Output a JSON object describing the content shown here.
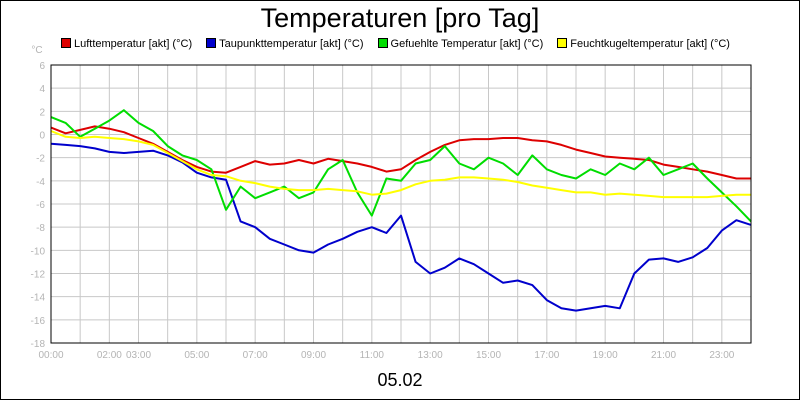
{
  "title": "Temperaturen [pro Tag]",
  "date_label": "05.02",
  "chart_data": {
    "type": "line",
    "title": "Temperaturen [pro Tag]",
    "xlabel": "05.02",
    "ylabel": "°C",
    "xlim": [
      0,
      24
    ],
    "ylim": [
      -18,
      6
    ],
    "grid": true,
    "legend_position": "top",
    "x_ticks": [
      "00:00",
      "02:00",
      "03:00",
      "05:00",
      "07:00",
      "09:00",
      "11:00",
      "13:00",
      "15:00",
      "17:00",
      "19:00",
      "21:00",
      "23:00"
    ],
    "x_tick_values": [
      0,
      2,
      3,
      5,
      7,
      9,
      11,
      13,
      15,
      17,
      19,
      21,
      23
    ],
    "y_ticks": [
      "6",
      "4",
      "2",
      "0",
      "-2",
      "-4",
      "-6",
      "-8",
      "-10",
      "-12",
      "-14",
      "-16",
      "-18"
    ],
    "y_tick_values": [
      6,
      4,
      2,
      0,
      -2,
      -4,
      -6,
      -8,
      -10,
      -12,
      -14,
      -16,
      -18
    ],
    "x": [
      0,
      0.5,
      1,
      1.5,
      2,
      2.5,
      3,
      3.5,
      4,
      4.5,
      5,
      5.5,
      6,
      6.5,
      7,
      7.5,
      8,
      8.5,
      9,
      9.5,
      10,
      10.5,
      11,
      11.5,
      12,
      12.5,
      13,
      13.5,
      14,
      14.5,
      15,
      15.5,
      16,
      16.5,
      17,
      17.5,
      18,
      18.5,
      19,
      19.5,
      20,
      20.5,
      21,
      21.5,
      22,
      22.5,
      23,
      23.5,
      24
    ],
    "series": [
      {
        "name": "Lufttemperatur [akt] (°C)",
        "color": "#dd0000",
        "values": [
          0.6,
          0.1,
          0.4,
          0.7,
          0.5,
          0.2,
          -0.3,
          -0.8,
          -1.5,
          -2.2,
          -2.8,
          -3.2,
          -3.3,
          -2.8,
          -2.3,
          -2.6,
          -2.5,
          -2.2,
          -2.5,
          -2.1,
          -2.3,
          -2.5,
          -2.8,
          -3.2,
          -3.0,
          -2.2,
          -1.5,
          -0.9,
          -0.5,
          -0.4,
          -0.4,
          -0.3,
          -0.3,
          -0.5,
          -0.6,
          -0.9,
          -1.3,
          -1.6,
          -1.9,
          -2.0,
          -2.1,
          -2.2,
          -2.6,
          -2.8,
          -3.0,
          -3.2,
          -3.5,
          -3.8,
          -3.8
        ]
      },
      {
        "name": "Taupunkttemperatur [akt] (°C)",
        "color": "#0000cc",
        "values": [
          -0.8,
          -0.9,
          -1.0,
          -1.2,
          -1.5,
          -1.6,
          -1.5,
          -1.4,
          -1.8,
          -2.4,
          -3.3,
          -3.7,
          -3.9,
          -7.5,
          -8.0,
          -9.0,
          -9.5,
          -10.0,
          -10.2,
          -9.5,
          -9.0,
          -8.4,
          -8.0,
          -8.5,
          -7.0,
          -11.0,
          -12.0,
          -11.5,
          -10.7,
          -11.2,
          -12.0,
          -12.8,
          -12.6,
          -13.0,
          -14.3,
          -15.0,
          -15.2,
          -15.0,
          -14.8,
          -15.0,
          -12.0,
          -10.8,
          -10.7,
          -11.0,
          -10.6,
          -9.8,
          -8.3,
          -7.4,
          -7.8
        ]
      },
      {
        "name": "Gefuehlte Temperatur [akt] (°C)",
        "color": "#00dd00",
        "values": [
          1.5,
          1.0,
          -0.2,
          0.5,
          1.2,
          2.1,
          1.0,
          0.3,
          -1.0,
          -1.8,
          -2.2,
          -3.0,
          -6.5,
          -4.5,
          -5.5,
          -5.0,
          -4.5,
          -5.5,
          -5.0,
          -3.0,
          -2.2,
          -5.0,
          -7.0,
          -3.8,
          -4.0,
          -2.5,
          -2.2,
          -1.0,
          -2.5,
          -3.0,
          -2.0,
          -2.5,
          -3.5,
          -1.8,
          -3.0,
          -3.5,
          -3.8,
          -3.0,
          -3.5,
          -2.5,
          -3.0,
          -2.0,
          -3.5,
          -3.0,
          -2.5,
          -3.8,
          -5.0,
          -6.2,
          -7.5
        ]
      },
      {
        "name": "Feuchtkugeltemperatur [akt] (°C)",
        "color": "#ffff00",
        "values": [
          0.3,
          -0.2,
          -0.3,
          -0.2,
          -0.3,
          -0.4,
          -0.6,
          -0.9,
          -1.6,
          -2.3,
          -3.0,
          -3.5,
          -3.6,
          -4.0,
          -4.2,
          -4.5,
          -4.7,
          -4.8,
          -4.8,
          -4.7,
          -4.8,
          -4.9,
          -5.2,
          -5.1,
          -4.8,
          -4.3,
          -4.0,
          -3.9,
          -3.7,
          -3.7,
          -3.8,
          -3.9,
          -4.1,
          -4.4,
          -4.6,
          -4.8,
          -5.0,
          -5.0,
          -5.2,
          -5.1,
          -5.2,
          -5.3,
          -5.4,
          -5.4,
          -5.4,
          -5.4,
          -5.3,
          -5.2,
          -5.2
        ]
      }
    ]
  }
}
